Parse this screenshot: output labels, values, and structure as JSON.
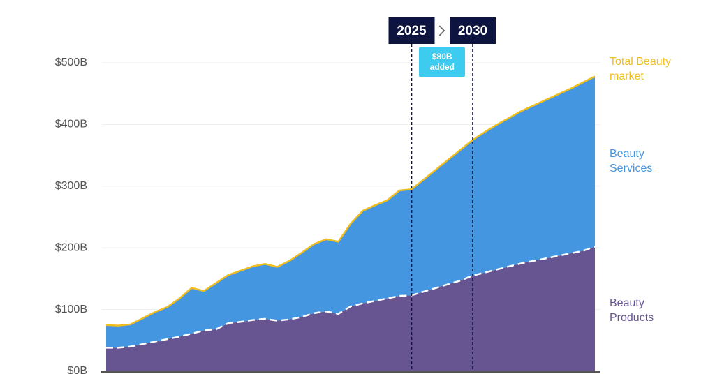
{
  "chart_data": {
    "type": "stacked_area",
    "categories": [
      null,
      null,
      null,
      null,
      null,
      null,
      null,
      null,
      null,
      null,
      null,
      null,
      null,
      null,
      null,
      null,
      null,
      null,
      null,
      null,
      null,
      null,
      null,
      null,
      null,
      "2025",
      null,
      null,
      null,
      null,
      "2030",
      null,
      null,
      null,
      null,
      null,
      null,
      null,
      null,
      null,
      null
    ],
    "series": [
      {
        "name": "Beauty Products",
        "color": "#675591",
        "values": [
          38,
          38,
          40,
          44,
          48,
          52,
          56,
          61,
          66,
          68,
          78,
          80,
          83,
          85,
          82,
          84,
          88,
          94,
          97,
          93,
          105,
          110,
          114,
          118,
          122,
          123,
          129,
          135,
          141,
          147,
          155,
          160,
          165,
          170,
          175,
          179,
          183,
          187,
          191,
          195,
          202
        ]
      },
      {
        "name": "Beauty Services",
        "color": "#4596e0",
        "values": [
          37,
          36,
          36,
          42,
          48,
          52,
          62,
          74,
          64,
          75,
          78,
          83,
          87,
          89,
          87,
          95,
          104,
          112,
          117,
          117,
          134,
          150,
          155,
          159,
          171,
          172,
          182,
          192,
          202,
          212,
          220,
          228,
          235,
          241,
          247,
          252,
          257,
          262,
          267,
          273,
          276
        ]
      }
    ],
    "total_label": "Total Beauty market",
    "total_color": "#f0be1e",
    "annotation": "$80B added",
    "ylim": [
      0,
      500
    ],
    "yticks": [
      {
        "value": 0,
        "label": "$0B"
      },
      {
        "value": 100,
        "label": "$100B"
      },
      {
        "value": 200,
        "label": "$200B"
      },
      {
        "value": 300,
        "label": "$300B"
      },
      {
        "value": 400,
        "label": "$400B"
      },
      {
        "value": 500,
        "label": "$500B"
      }
    ],
    "grid": true
  }
}
